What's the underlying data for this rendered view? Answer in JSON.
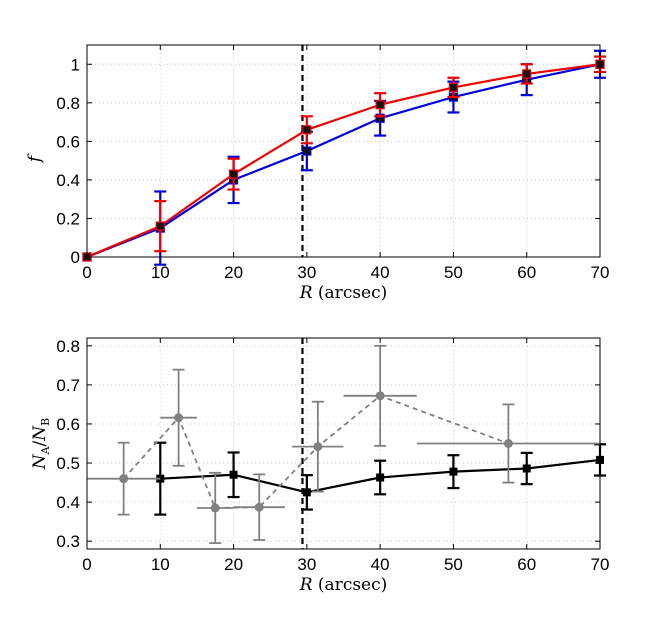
{
  "chart_data": [
    {
      "type": "line",
      "xlim": [
        0,
        70
      ],
      "ylim": [
        0,
        1.1
      ],
      "xticks": [
        "0",
        "10",
        "20",
        "30",
        "40",
        "50",
        "60",
        "70"
      ],
      "yticks": [
        "0",
        "0.2",
        "0.4",
        "0.6",
        "0.8",
        "1"
      ],
      "xlabel": "R (arcsec)",
      "xlabel_var": "R",
      "xlabel_unit": "(arcsec)",
      "ylabel": "f",
      "vline_x": 29.4,
      "series": [
        {
          "name": "blue",
          "color": "#0000dd",
          "x": [
            0,
            10,
            20,
            30,
            40,
            50,
            60,
            70
          ],
          "y": [
            0,
            0.15,
            0.4,
            0.55,
            0.72,
            0.83,
            0.92,
            1.0
          ],
          "err": [
            0,
            0.19,
            0.12,
            0.1,
            0.09,
            0.08,
            0.08,
            0.07
          ]
        },
        {
          "name": "red",
          "color": "#ee0000",
          "x": [
            0,
            10,
            20,
            30,
            40,
            50,
            60,
            70
          ],
          "y": [
            0,
            0.16,
            0.43,
            0.66,
            0.79,
            0.88,
            0.95,
            1.0
          ],
          "err": [
            0,
            0.13,
            0.08,
            0.07,
            0.06,
            0.05,
            0.05,
            0.04
          ]
        }
      ]
    },
    {
      "type": "line",
      "xlim": [
        0,
        70
      ],
      "ylim": [
        0.28,
        0.82
      ],
      "xticks": [
        "0",
        "10",
        "20",
        "30",
        "40",
        "50",
        "60",
        "70"
      ],
      "yticks": [
        "0.3",
        "0.4",
        "0.5",
        "0.6",
        "0.7",
        "0.8"
      ],
      "xlabel": "R (arcsec)",
      "xlabel_var": "R",
      "xlabel_unit": "(arcsec)",
      "ylabel": "NA/NB",
      "ylabel_N": "N",
      "ylabel_A": "A",
      "ylabel_B": "B",
      "vline_x": 29.4,
      "series": [
        {
          "name": "black",
          "color": "#000000",
          "x": [
            10,
            20,
            30,
            40,
            50,
            60,
            70
          ],
          "y": [
            0.46,
            0.47,
            0.425,
            0.463,
            0.478,
            0.486,
            0.508
          ],
          "err": [
            0.092,
            0.057,
            0.044,
            0.043,
            0.042,
            0.04,
            0.04
          ]
        },
        {
          "name": "gray",
          "color": "#808080",
          "x": [
            5,
            12.5,
            17.5,
            23.5,
            31.5,
            40,
            57.5
          ],
          "y": [
            0.46,
            0.616,
            0.385,
            0.387,
            0.542,
            0.672,
            0.55
          ],
          "err": [
            0.092,
            0.123,
            0.09,
            0.084,
            0.115,
            0.128,
            0.1
          ],
          "xerr": [
            5,
            2.5,
            2.5,
            3.5,
            3.5,
            5,
            12.5
          ]
        }
      ]
    }
  ]
}
